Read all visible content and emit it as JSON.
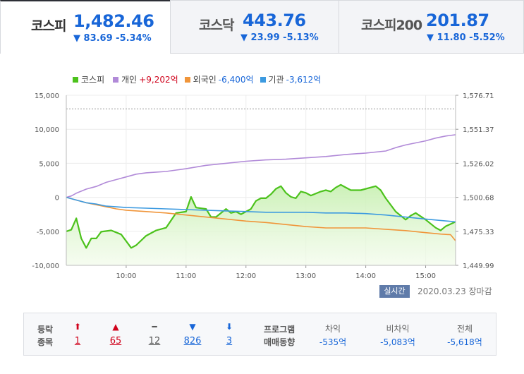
{
  "tabs": [
    {
      "name": "코스피",
      "value": "1,482.46",
      "change": "▼ 83.69 -5.34%",
      "active": true
    },
    {
      "name": "코스닥",
      "value": "443.76",
      "change": "▼ 23.99 -5.13%",
      "active": false
    },
    {
      "name": "코스피200",
      "value": "201.87",
      "change": "▼ 11.80 -5.52%",
      "active": false
    }
  ],
  "legend": [
    {
      "label": "코스피",
      "value": "",
      "color": "#4cc21c"
    },
    {
      "label": "개인",
      "value": "+9,202억",
      "color": "#b18ad8"
    },
    {
      "label": "외국인",
      "value": "-6,400억",
      "color": "#f0953a"
    },
    {
      "label": "기관",
      "value": "-3,612억",
      "color": "#3c9ae0"
    }
  ],
  "realtime_label": "실시간",
  "timestamp": "2020.03.23 장마감",
  "stats": {
    "updown_label_1": "등락",
    "updown_label_2": "종목",
    "items": [
      {
        "icon": "⬆",
        "count": "1",
        "color": "#d0021b"
      },
      {
        "icon": "▲",
        "count": "65",
        "color": "#d0021b"
      },
      {
        "icon": "━",
        "count": "12",
        "color": "#555555"
      },
      {
        "icon": "▼",
        "count": "826",
        "color": "#1866d8"
      },
      {
        "icon": "⬇",
        "count": "3",
        "color": "#1866d8"
      }
    ],
    "program_label_1": "프로그램",
    "program_label_2": "매매동향",
    "program": [
      {
        "label": "차익",
        "value": "-535억"
      },
      {
        "label": "비차익",
        "value": "-5,083억"
      },
      {
        "label": "전체",
        "value": "-5,618억"
      }
    ]
  },
  "chart_data": {
    "type": "line",
    "title": "",
    "x_ticks": [
      "10:00",
      "11:00",
      "12:00",
      "13:00",
      "14:00",
      "15:00"
    ],
    "y_left": {
      "ticks": [
        "15,000",
        "10,000",
        "5,000",
        "0",
        "-5,000",
        "-10,000"
      ],
      "range": [
        -10000,
        15000
      ]
    },
    "y_right": {
      "ticks": [
        "1,576.71",
        "1,551.37",
        "1,526.02",
        "1,500.68",
        "1,475.33",
        "1,449.99"
      ],
      "range": [
        1449.99,
        1576.71
      ]
    },
    "reference_line": 13000,
    "x_minutes_range": [
      0,
      390
    ],
    "series": [
      {
        "name": "코스피",
        "axis": "right",
        "color": "#4cc21c",
        "fill": true,
        "points": [
          [
            0,
            1475.3
          ],
          [
            5,
            1476.5
          ],
          [
            10,
            1485
          ],
          [
            15,
            1470
          ],
          [
            20,
            1463
          ],
          [
            25,
            1470
          ],
          [
            30,
            1470
          ],
          [
            35,
            1475
          ],
          [
            45,
            1476
          ],
          [
            55,
            1473
          ],
          [
            60,
            1468
          ],
          [
            65,
            1463
          ],
          [
            70,
            1465
          ],
          [
            80,
            1472
          ],
          [
            90,
            1476
          ],
          [
            100,
            1478
          ],
          [
            110,
            1489
          ],
          [
            120,
            1490
          ],
          [
            125,
            1501
          ],
          [
            130,
            1493
          ],
          [
            140,
            1492
          ],
          [
            145,
            1486
          ],
          [
            150,
            1486
          ],
          [
            160,
            1492
          ],
          [
            165,
            1489
          ],
          [
            170,
            1490
          ],
          [
            175,
            1488
          ],
          [
            180,
            1490
          ],
          [
            185,
            1492
          ],
          [
            190,
            1498
          ],
          [
            195,
            1500
          ],
          [
            200,
            1500
          ],
          [
            205,
            1503
          ],
          [
            210,
            1507
          ],
          [
            215,
            1509
          ],
          [
            220,
            1504
          ],
          [
            225,
            1501
          ],
          [
            230,
            1500
          ],
          [
            235,
            1505
          ],
          [
            240,
            1504
          ],
          [
            245,
            1502
          ],
          [
            255,
            1505
          ],
          [
            260,
            1506
          ],
          [
            265,
            1505
          ],
          [
            270,
            1508
          ],
          [
            275,
            1510
          ],
          [
            285,
            1506
          ],
          [
            295,
            1506
          ],
          [
            305,
            1508
          ],
          [
            310,
            1509
          ],
          [
            315,
            1506
          ],
          [
            320,
            1500
          ],
          [
            330,
            1490
          ],
          [
            340,
            1484
          ],
          [
            345,
            1487
          ],
          [
            350,
            1489
          ],
          [
            360,
            1484
          ],
          [
            370,
            1478
          ],
          [
            375,
            1476
          ],
          [
            380,
            1479
          ],
          [
            390,
            1482.46
          ]
        ]
      },
      {
        "name": "개인",
        "axis": "left",
        "color": "#b18ad8",
        "points": [
          [
            0,
            0
          ],
          [
            5,
            200
          ],
          [
            10,
            600
          ],
          [
            20,
            1200
          ],
          [
            30,
            1600
          ],
          [
            40,
            2200
          ],
          [
            50,
            2600
          ],
          [
            60,
            3000
          ],
          [
            70,
            3400
          ],
          [
            80,
            3600
          ],
          [
            90,
            3700
          ],
          [
            100,
            3800
          ],
          [
            110,
            4000
          ],
          [
            120,
            4200
          ],
          [
            140,
            4700
          ],
          [
            160,
            5000
          ],
          [
            180,
            5300
          ],
          [
            200,
            5500
          ],
          [
            220,
            5600
          ],
          [
            240,
            5800
          ],
          [
            260,
            6000
          ],
          [
            280,
            6300
          ],
          [
            300,
            6500
          ],
          [
            320,
            6800
          ],
          [
            330,
            7300
          ],
          [
            340,
            7700
          ],
          [
            350,
            8000
          ],
          [
            360,
            8300
          ],
          [
            370,
            8700
          ],
          [
            380,
            9000
          ],
          [
            390,
            9202
          ]
        ]
      },
      {
        "name": "외국인",
        "axis": "left",
        "color": "#f0953a",
        "points": [
          [
            0,
            0
          ],
          [
            10,
            -400
          ],
          [
            20,
            -800
          ],
          [
            30,
            -1100
          ],
          [
            40,
            -1400
          ],
          [
            50,
            -1700
          ],
          [
            60,
            -1900
          ],
          [
            80,
            -2100
          ],
          [
            100,
            -2300
          ],
          [
            120,
            -2600
          ],
          [
            140,
            -2900
          ],
          [
            160,
            -3200
          ],
          [
            180,
            -3500
          ],
          [
            200,
            -3700
          ],
          [
            220,
            -4000
          ],
          [
            240,
            -4300
          ],
          [
            260,
            -4500
          ],
          [
            280,
            -4500
          ],
          [
            300,
            -4500
          ],
          [
            320,
            -4700
          ],
          [
            340,
            -4900
          ],
          [
            360,
            -5200
          ],
          [
            375,
            -5400
          ],
          [
            385,
            -5500
          ],
          [
            390,
            -6400
          ]
        ]
      },
      {
        "name": "기관",
        "axis": "left",
        "color": "#3c9ae0",
        "points": [
          [
            0,
            0
          ],
          [
            10,
            -400
          ],
          [
            20,
            -800
          ],
          [
            30,
            -1000
          ],
          [
            40,
            -1300
          ],
          [
            50,
            -1400
          ],
          [
            60,
            -1500
          ],
          [
            80,
            -1600
          ],
          [
            100,
            -1700
          ],
          [
            120,
            -1800
          ],
          [
            140,
            -1900
          ],
          [
            160,
            -2000
          ],
          [
            180,
            -2100
          ],
          [
            200,
            -2200
          ],
          [
            220,
            -2200
          ],
          [
            240,
            -2200
          ],
          [
            260,
            -2300
          ],
          [
            280,
            -2300
          ],
          [
            300,
            -2400
          ],
          [
            320,
            -2600
          ],
          [
            340,
            -2900
          ],
          [
            360,
            -3200
          ],
          [
            375,
            -3400
          ],
          [
            390,
            -3612
          ]
        ]
      }
    ]
  }
}
